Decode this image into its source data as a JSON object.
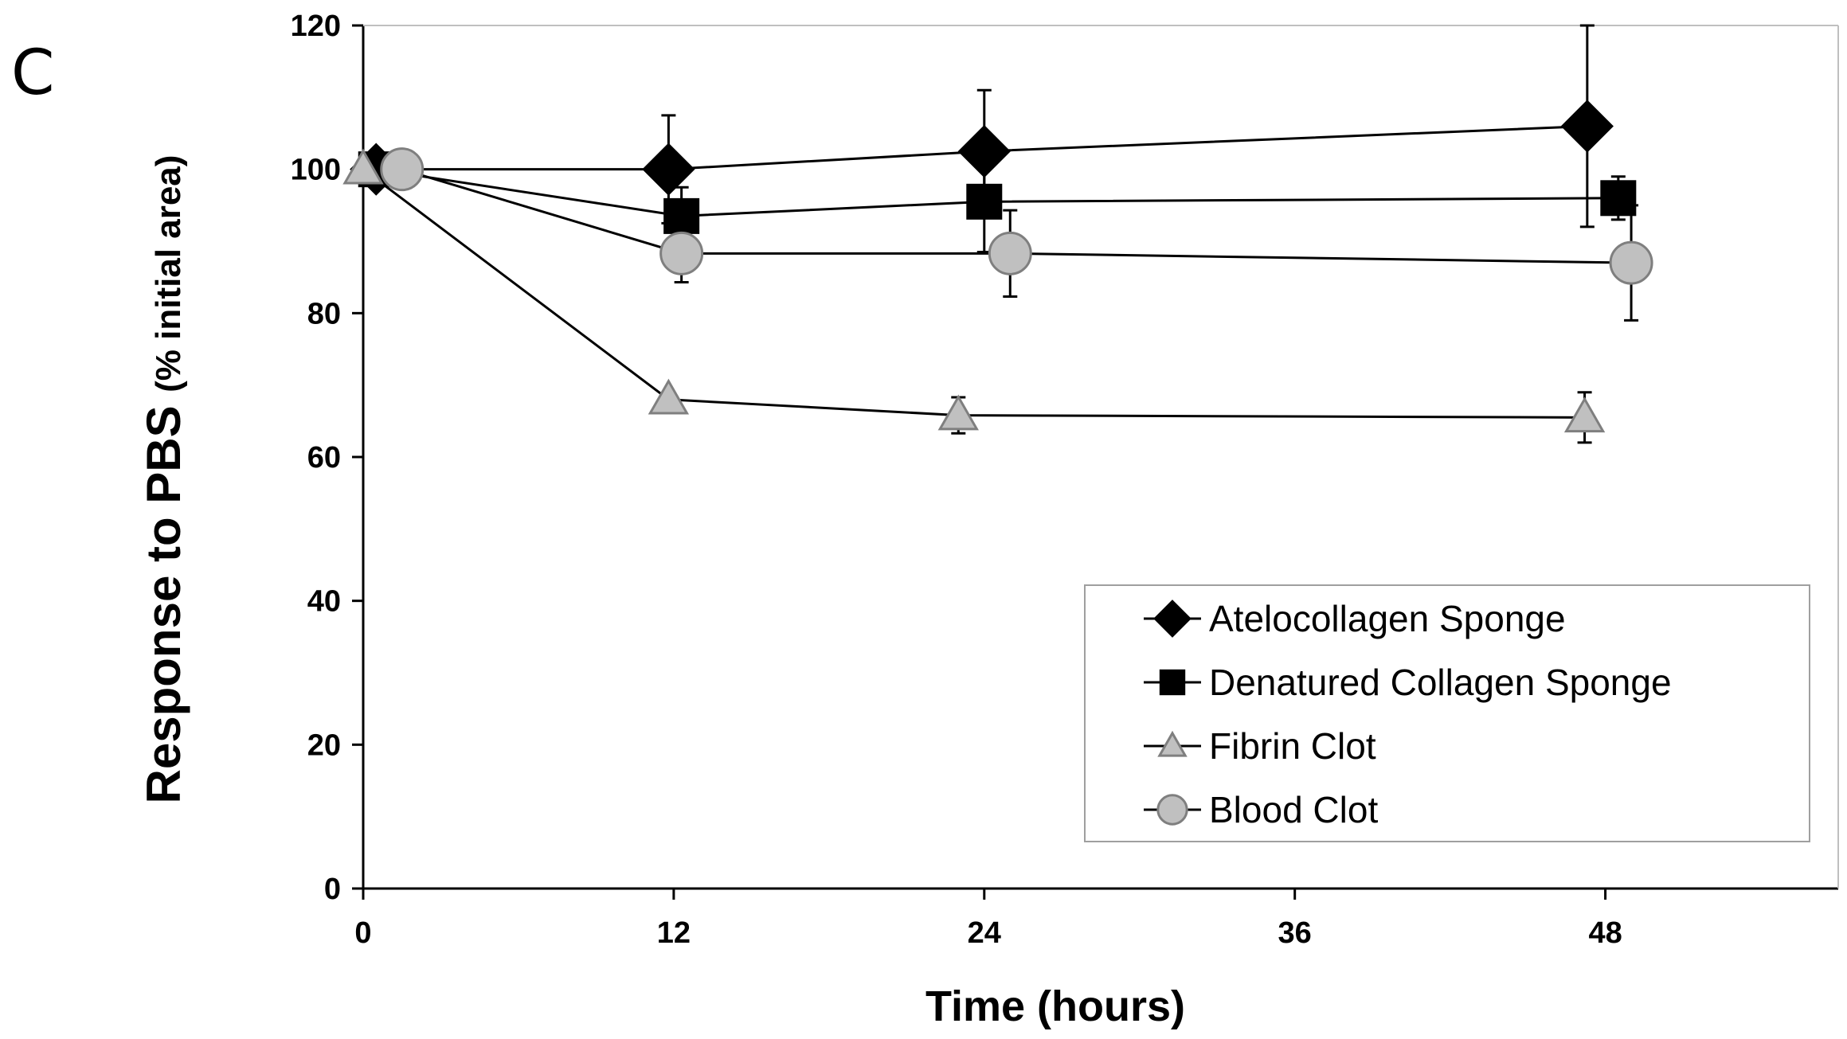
{
  "panel_label": "C",
  "chart_data": {
    "type": "line",
    "title": "",
    "xlabel": "Time (hours)",
    "ylabel_main": "Response to PBS",
    "ylabel_sub": "(% initial area)",
    "xlim": [
      0,
      57
    ],
    "ylim": [
      0,
      120
    ],
    "xticks": [
      0,
      12,
      24,
      36,
      48
    ],
    "yticks": [
      0,
      20,
      40,
      60,
      80,
      100,
      120
    ],
    "legend_position": "lower-right",
    "series": [
      {
        "name": "Atelocollagen Sponge",
        "marker": "diamond",
        "fill": "#000000",
        "stroke": "#000000",
        "x": [
          0.5,
          11.8,
          24,
          47.3
        ],
        "y": [
          100,
          100,
          102.5,
          106
        ],
        "err": [
          0,
          7.5,
          8.5,
          14
        ]
      },
      {
        "name": "Denatured Collagen Sponge",
        "marker": "square",
        "fill": "#000000",
        "stroke": "#000000",
        "x": [
          0.5,
          12.3,
          24,
          48.5
        ],
        "y": [
          100,
          93.5,
          95.5,
          96
        ],
        "err": [
          0,
          4,
          7,
          3
        ]
      },
      {
        "name": "Fibrin Clot",
        "marker": "triangle",
        "fill": "#c0c0c0",
        "stroke": "#7f7f7f",
        "x": [
          0,
          11.8,
          23,
          47.2
        ],
        "y": [
          100,
          68,
          65.8,
          65.5
        ],
        "err": [
          0,
          0,
          2.5,
          3.5
        ]
      },
      {
        "name": "Blood Clot",
        "marker": "circle",
        "fill": "#c0c0c0",
        "stroke": "#7f7f7f",
        "x": [
          1.5,
          12.3,
          25,
          49
        ],
        "y": [
          100,
          88.3,
          88.3,
          87
        ],
        "err": [
          0,
          4,
          6,
          8
        ]
      }
    ]
  }
}
